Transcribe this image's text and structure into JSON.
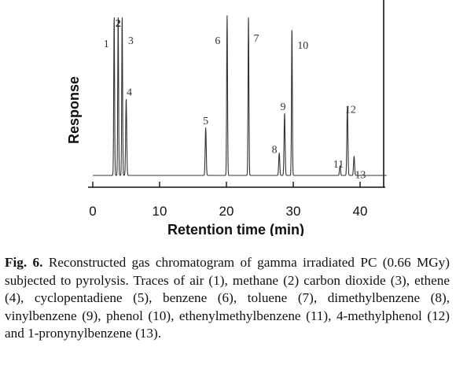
{
  "chart_data": {
    "type": "line",
    "title": "",
    "xlabel": "Retention time (min)",
    "ylabel": "Response",
    "xlim": [
      0,
      44
    ],
    "xticks": [
      0,
      10,
      20,
      30,
      40
    ],
    "grid": false,
    "peaks": [
      {
        "label": "1",
        "x": 3.2,
        "height": 1.0
      },
      {
        "label": "2",
        "x": 3.8,
        "height": 1.0
      },
      {
        "label": "3",
        "x": 4.4,
        "height": 1.0
      },
      {
        "label": "4",
        "x": 5.0,
        "height": 0.48
      },
      {
        "label": "5",
        "x": 16.9,
        "height": 0.3
      },
      {
        "label": "6",
        "x": 20.1,
        "height": 1.0
      },
      {
        "label": "7",
        "x": 23.3,
        "height": 1.0
      },
      {
        "label": "8",
        "x": 27.9,
        "height": 0.14
      },
      {
        "label": "9",
        "x": 28.7,
        "height": 0.39
      },
      {
        "label": "10",
        "x": 29.8,
        "height": 0.92
      },
      {
        "label": "11",
        "x": 37.0,
        "height": 0.06
      },
      {
        "label": "12",
        "x": 38.1,
        "height": 0.43
      },
      {
        "label": "13",
        "x": 39.1,
        "height": 0.12
      }
    ]
  },
  "caption": {
    "label": "Fig. 6.",
    "text": "Reconstructed gas chromatogram of gamma irradiated PC (0.66 MGy) subjected to pyrolysis. Traces of air (1), methane (2) carbon dioxide (3), ethene (4), cyclopentadiene (5), benzene (6), toluene (7), dimethylbenzene (8), vinylbenzene (9), phenol (10), ethenylmethylbenzene (11), 4-methylphenol (12) and 1-pronynylbenzene (13)."
  }
}
